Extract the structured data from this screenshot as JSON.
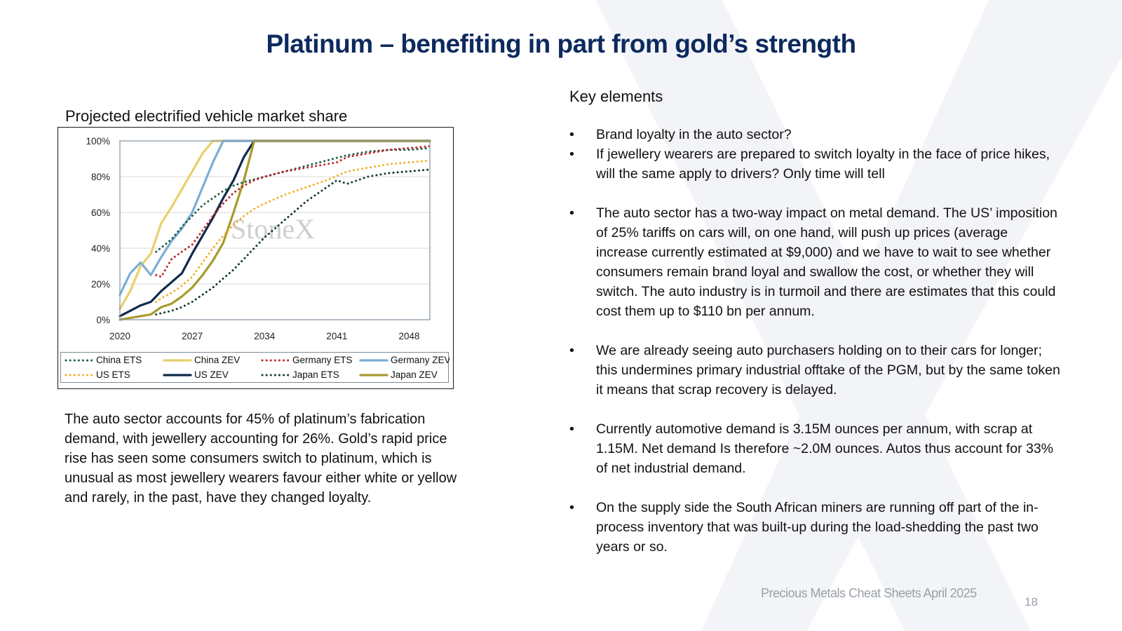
{
  "slide": {
    "title": "Platinum – benefiting in part from gold’s strength",
    "footer": "Precious Metals Cheat Sheets April 2025",
    "page_number": "18"
  },
  "left": {
    "chart_title": "Projected electrified vehicle market share",
    "watermark": "StoneX",
    "body": "The auto sector accounts for 45% of platinum’s fabrication demand, with jewellery accounting for  26%.  Gold’s rapid price rise has seen some consumers switch to platinum, which is unusual as most jewellery wearers favour either white or yellow and rarely, in the past, have they changed loyalty."
  },
  "right": {
    "heading": "Key elements",
    "bullet_char": "•",
    "bullets": [
      "Brand loyalty in the auto sector?",
      "If jewellery wearers are prepared to switch loyalty in the face of price hikes, will the same apply to drivers?  Only time will tell",
      "The auto sector has a two-way impact on metal demand.  The US’ imposition of 25% tariffs on cars will, on one hand, will push up prices (average increase currently estimated at $9,000) and we have to wait to see whether consumers remain brand loyal and swallow the cost, or whether they will switch.   The auto industry is in turmoil and there are estimates that this could cost them up to $110 bn per annum.",
      "We are already seeing auto purchasers holding on to their cars for longer; this undermines primary industrial offtake of the PGM, but by the same token it means that scrap recovery is delayed.",
      "Currently automotive demand is 3.15M ounces per annum, with scrap at 1.15M.  Net demand Is therefore ~2.0M ounces.  Autos thus account for 33% of net industrial demand.",
      "On the supply side the South African miners are running off part of the in-process inventory that was built-up during the load-shedding the past two years or so."
    ]
  },
  "chart_data": {
    "type": "line",
    "title": "Projected electrified vehicle market share",
    "xlabel": "",
    "ylabel": "",
    "xlim": [
      2020,
      2050
    ],
    "ylim": [
      0,
      100
    ],
    "x_ticks": [
      2020,
      2027,
      2034,
      2041,
      2048
    ],
    "x_tick_labels": [
      "2020",
      "2027",
      "2034",
      "2041",
      "2048"
    ],
    "y_ticks": [
      0,
      20,
      40,
      60,
      80,
      100
    ],
    "y_tick_labels": [
      "0%",
      "20%",
      "40%",
      "60%",
      "80%",
      "100%"
    ],
    "grid": true,
    "legend_position": "bottom",
    "series": [
      {
        "name": "China ETS",
        "color": "#1f5f4a",
        "style": "dotted",
        "points": [
          [
            2023.5,
            38
          ],
          [
            2025,
            45
          ],
          [
            2026,
            52
          ],
          [
            2027,
            58
          ],
          [
            2028,
            64
          ],
          [
            2029,
            68
          ],
          [
            2030,
            72
          ],
          [
            2031,
            75
          ],
          [
            2032,
            77
          ],
          [
            2034,
            80
          ],
          [
            2036,
            83
          ],
          [
            2038,
            86
          ],
          [
            2040,
            89
          ],
          [
            2042,
            92
          ],
          [
            2044,
            94
          ],
          [
            2046,
            95
          ],
          [
            2048,
            95
          ],
          [
            2050,
            96
          ]
        ]
      },
      {
        "name": "China ZEV",
        "color": "#e8d06a",
        "style": "solid",
        "points": [
          [
            2020,
            6
          ],
          [
            2021,
            16
          ],
          [
            2022,
            30
          ],
          [
            2023,
            37
          ],
          [
            2024,
            54
          ],
          [
            2025,
            63
          ],
          [
            2026,
            73
          ],
          [
            2027,
            83
          ],
          [
            2028,
            93
          ],
          [
            2029,
            100
          ],
          [
            2050,
            100
          ]
        ]
      },
      {
        "name": "Germany ETS",
        "color": "#c0282d",
        "style": "dotted",
        "points": [
          [
            2023.5,
            25
          ],
          [
            2024,
            24
          ],
          [
            2025,
            34
          ],
          [
            2026,
            38
          ],
          [
            2027,
            42
          ],
          [
            2028,
            50
          ],
          [
            2029,
            58
          ],
          [
            2030,
            65
          ],
          [
            2031,
            71
          ],
          [
            2032,
            75
          ],
          [
            2033,
            78
          ],
          [
            2034,
            80
          ],
          [
            2036,
            83
          ],
          [
            2038,
            85
          ],
          [
            2040,
            87
          ],
          [
            2041,
            88
          ],
          [
            2042,
            91
          ],
          [
            2044,
            93
          ],
          [
            2046,
            95
          ],
          [
            2048,
            96
          ],
          [
            2050,
            97
          ]
        ]
      },
      {
        "name": "Germany ZEV",
        "color": "#7aaed6",
        "style": "solid",
        "points": [
          [
            2020,
            14
          ],
          [
            2021,
            26
          ],
          [
            2022,
            32
          ],
          [
            2023,
            25
          ],
          [
            2024,
            35
          ],
          [
            2025,
            44
          ],
          [
            2026,
            51
          ],
          [
            2027,
            60
          ],
          [
            2028,
            74
          ],
          [
            2029,
            88
          ],
          [
            2030,
            100
          ],
          [
            2050,
            100
          ]
        ]
      },
      {
        "name": "US ETS",
        "color": "#f2b12e",
        "style": "dotted",
        "points": [
          [
            2023.5,
            10
          ],
          [
            2024,
            12
          ],
          [
            2025,
            15
          ],
          [
            2026,
            19
          ],
          [
            2027,
            24
          ],
          [
            2028,
            32
          ],
          [
            2029,
            40
          ],
          [
            2030,
            47
          ],
          [
            2031,
            53
          ],
          [
            2032,
            58
          ],
          [
            2033,
            62
          ],
          [
            2034,
            65
          ],
          [
            2036,
            70
          ],
          [
            2038,
            74
          ],
          [
            2040,
            78
          ],
          [
            2042,
            83
          ],
          [
            2044,
            85
          ],
          [
            2046,
            87
          ],
          [
            2048,
            88
          ],
          [
            2050,
            89
          ]
        ]
      },
      {
        "name": "US ZEV",
        "color": "#0f2a4a",
        "style": "solid",
        "points": [
          [
            2020,
            2
          ],
          [
            2021,
            5
          ],
          [
            2022,
            8
          ],
          [
            2023,
            10
          ],
          [
            2024,
            16
          ],
          [
            2025,
            21
          ],
          [
            2026,
            26
          ],
          [
            2027,
            37
          ],
          [
            2028,
            47
          ],
          [
            2029,
            57
          ],
          [
            2030,
            68
          ],
          [
            2031,
            78
          ],
          [
            2032,
            91
          ],
          [
            2033,
            100
          ],
          [
            2050,
            100
          ]
        ]
      },
      {
        "name": "Japan ETS",
        "color": "#173d2c",
        "style": "dotted",
        "points": [
          [
            2023.5,
            3
          ],
          [
            2025,
            5
          ],
          [
            2026,
            7
          ],
          [
            2027,
            10
          ],
          [
            2028,
            14
          ],
          [
            2029,
            18
          ],
          [
            2030,
            23
          ],
          [
            2031,
            28
          ],
          [
            2032,
            34
          ],
          [
            2033,
            40
          ],
          [
            2034,
            46
          ],
          [
            2036,
            56
          ],
          [
            2038,
            66
          ],
          [
            2040,
            74
          ],
          [
            2041,
            78
          ],
          [
            2042,
            76
          ],
          [
            2044,
            80
          ],
          [
            2046,
            82
          ],
          [
            2048,
            83
          ],
          [
            2050,
            84
          ]
        ]
      },
      {
        "name": "Japan ZEV",
        "color": "#a69a2d",
        "style": "solid",
        "points": [
          [
            2020,
            0
          ],
          [
            2021,
            1
          ],
          [
            2022,
            2
          ],
          [
            2023,
            3
          ],
          [
            2024,
            7
          ],
          [
            2025,
            9
          ],
          [
            2026,
            13
          ],
          [
            2027,
            18
          ],
          [
            2028,
            25
          ],
          [
            2029,
            33
          ],
          [
            2030,
            43
          ],
          [
            2031,
            60
          ],
          [
            2032,
            78
          ],
          [
            2033,
            100
          ],
          [
            2050,
            100
          ]
        ]
      }
    ]
  }
}
